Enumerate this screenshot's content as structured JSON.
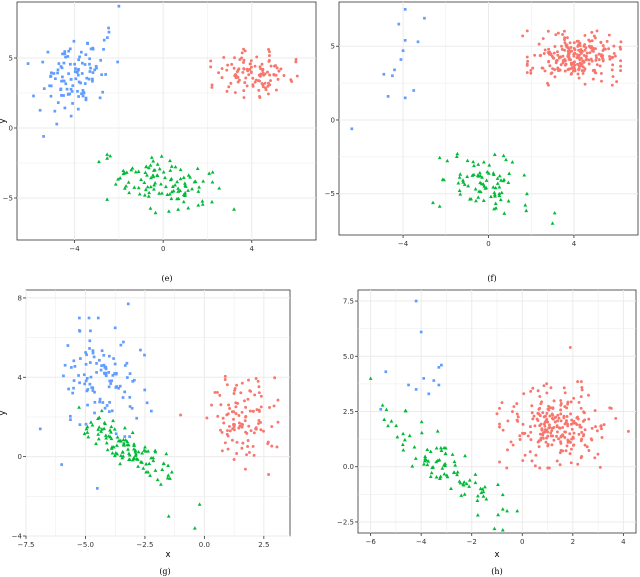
{
  "colors": {
    "red": "#f8766d",
    "green": "#00ba38",
    "blue": "#619cff",
    "grid": "#ebebeb",
    "frame": "#333333"
  },
  "chart_data": [
    {
      "id": "e",
      "caption": "(e)",
      "type": "scatter",
      "xlabel": "",
      "ylabel": "y",
      "xlim": [
        -6.6,
        6.9
      ],
      "ylim": [
        -8.0,
        9.0
      ],
      "xticks": [
        -4,
        0,
        4
      ],
      "yticks": [
        -5,
        0,
        5
      ],
      "xtick_labels": [
        "−4",
        "0",
        "4"
      ],
      "ytick_labels": [
        "−5",
        "0",
        "5"
      ],
      "grid": true,
      "legend": "none",
      "clusters": [
        {
          "color": "red",
          "marker": "circle",
          "n": 110,
          "center": [
            4.1,
            3.9
          ],
          "spread": [
            0.85,
            0.75
          ],
          "rho": 0.0,
          "extra": [
            [
              6.0,
              4.9
            ],
            [
              2.2,
              2.9
            ]
          ]
        },
        {
          "color": "green",
          "marker": "triangle",
          "n": 110,
          "center": [
            0.0,
            -3.9
          ],
          "spread": [
            1.1,
            1.0
          ],
          "rho": -0.25,
          "extra": [
            [
              3.2,
              -5.8
            ],
            [
              -2.9,
              -2.4
            ]
          ]
        },
        {
          "color": "blue",
          "marker": "square",
          "n": 110,
          "center": [
            -3.9,
            3.8
          ],
          "spread": [
            0.85,
            1.4
          ],
          "rho": 0.3,
          "extra": [
            [
              -2.0,
              8.7
            ],
            [
              -5.4,
              -0.6
            ],
            [
              -6.1,
              4.6
            ]
          ]
        }
      ]
    },
    {
      "id": "f",
      "caption": "(f)",
      "type": "scatter",
      "xlabel": "",
      "ylabel": "",
      "xlim": [
        -7.0,
        7.0
      ],
      "ylim": [
        -7.8,
        8.0
      ],
      "xticks": [
        -4,
        0,
        4
      ],
      "yticks": [
        -5,
        0,
        5
      ],
      "xtick_labels": [
        "−4",
        "0",
        "4"
      ],
      "ytick_labels": [
        "−5",
        "0",
        "5"
      ],
      "grid": true,
      "legend": "none",
      "clusters": [
        {
          "color": "red",
          "marker": "circle",
          "n": 240,
          "center": [
            4.0,
            4.2
          ],
          "spread": [
            0.95,
            0.8
          ],
          "rho": 0.0,
          "extra": [
            [
              1.6,
              5.7
            ],
            [
              6.2,
              5.3
            ],
            [
              6.0,
              2.6
            ]
          ]
        },
        {
          "color": "green",
          "marker": "triangle",
          "n": 80,
          "center": [
            -0.1,
            -4.4
          ],
          "spread": [
            0.95,
            0.95
          ],
          "rho": -0.2,
          "extra": [
            [
              -2.6,
              -5.6
            ],
            [
              3.1,
              -6.3
            ],
            [
              3.0,
              -7.0
            ],
            [
              1.8,
              -5.0
            ]
          ]
        },
        {
          "color": "blue",
          "marker": "square",
          "n": 0,
          "center": [
            -4,
            4
          ],
          "spread": [
            1,
            1
          ],
          "rho": 0,
          "points": [
            [
              -3.9,
              7.5
            ],
            [
              -3.0,
              6.9
            ],
            [
              -4.2,
              6.5
            ],
            [
              -3.3,
              5.3
            ],
            [
              -3.9,
              5.4
            ],
            [
              -4.0,
              4.7
            ],
            [
              -4.1,
              4.1
            ],
            [
              -4.4,
              3.4
            ],
            [
              -4.5,
              3.0
            ],
            [
              -4.9,
              3.1
            ],
            [
              -3.5,
              2.0
            ],
            [
              -3.9,
              1.5
            ],
            [
              -4.7,
              1.6
            ],
            [
              -6.4,
              -0.6
            ]
          ]
        }
      ]
    },
    {
      "id": "g",
      "caption": "(g)",
      "type": "scatter",
      "xlabel": "x",
      "ylabel": "y",
      "xlim": [
        -7.5,
        3.6
      ],
      "ylim": [
        -4.0,
        8.4
      ],
      "xticks": [
        -7.5,
        -5.0,
        -2.5,
        0.0,
        2.5
      ],
      "yticks": [
        -4,
        0,
        4,
        8
      ],
      "xtick_labels": [
        "−7.5",
        "−5.0",
        "−2.5",
        "0.0",
        "2.5"
      ],
      "ytick_labels": [
        "−4",
        "0",
        "4",
        "8"
      ],
      "grid": true,
      "legend": "none",
      "clusters": [
        {
          "color": "red",
          "marker": "circle",
          "n": 110,
          "center": [
            1.6,
            1.9
          ],
          "spread": [
            0.65,
            1.1
          ],
          "rho": 0.0,
          "extra": [
            [
              -1.0,
              2.1
            ],
            [
              2.7,
              -0.9
            ],
            [
              0.3,
              2.6
            ]
          ]
        },
        {
          "color": "green",
          "marker": "triangle",
          "n": 110,
          "center": [
            -3.2,
            0.4
          ],
          "spread": [
            0.9,
            0.85
          ],
          "rho": -0.85,
          "extra": [
            [
              -0.2,
              -2.4
            ],
            [
              -0.4,
              -3.6
            ],
            [
              -1.5,
              -3.0
            ]
          ]
        },
        {
          "color": "blue",
          "marker": "square",
          "n": 110,
          "center": [
            -4.3,
            4.0
          ],
          "spread": [
            0.9,
            1.3
          ],
          "rho": 0.0,
          "extra": [
            [
              -6.9,
              1.4
            ],
            [
              -6.0,
              -0.4
            ],
            [
              -4.5,
              -1.6
            ],
            [
              -3.2,
              7.7
            ]
          ]
        }
      ]
    },
    {
      "id": "h",
      "caption": "(h)",
      "type": "scatter",
      "xlabel": "x",
      "ylabel": "",
      "xlim": [
        -6.5,
        4.5
      ],
      "ylim": [
        -3.0,
        8.0
      ],
      "xticks": [
        -6,
        -4,
        -2,
        0,
        2,
        4
      ],
      "yticks": [
        -2.5,
        0.0,
        2.5,
        5.0,
        7.5
      ],
      "xtick_labels": [
        "−6",
        "−4",
        "−2",
        "0",
        "2",
        "4"
      ],
      "ytick_labels": [
        "−2.5",
        "0.0",
        "2.5",
        "5.0",
        "7.5"
      ],
      "grid": true,
      "legend": "none",
      "clusters": [
        {
          "color": "red",
          "marker": "circle",
          "n": 240,
          "center": [
            1.4,
            1.9
          ],
          "spread": [
            1.0,
            0.85
          ],
          "rho": 0.0,
          "extra": [
            [
              -1.0,
              2.4
            ],
            [
              1.9,
              5.4
            ],
            [
              4.2,
              1.6
            ]
          ]
        },
        {
          "color": "green",
          "marker": "triangle",
          "n": 90,
          "center": [
            -3.3,
            0.2
          ],
          "spread": [
            1.1,
            1.0
          ],
          "rho": -0.8,
          "extra": [
            [
              -6.0,
              4.0
            ],
            [
              -0.6,
              -2.0
            ],
            [
              -0.2,
              -2.0
            ],
            [
              -1.1,
              -2.8
            ]
          ]
        },
        {
          "color": "blue",
          "marker": "square",
          "n": 0,
          "center": [
            -4,
            4
          ],
          "spread": [
            1,
            1
          ],
          "rho": 0,
          "points": [
            [
              -4.2,
              7.5
            ],
            [
              -4.0,
              6.1
            ],
            [
              -3.3,
              4.5
            ],
            [
              -3.2,
              4.6
            ],
            [
              -5.4,
              4.3
            ],
            [
              -3.9,
              4.0
            ],
            [
              -3.5,
              3.9
            ],
            [
              -4.5,
              3.7
            ],
            [
              -3.3,
              3.7
            ],
            [
              -4.2,
              3.5
            ],
            [
              -3.7,
              3.3
            ],
            [
              -5.6,
              2.6
            ]
          ]
        }
      ]
    }
  ]
}
